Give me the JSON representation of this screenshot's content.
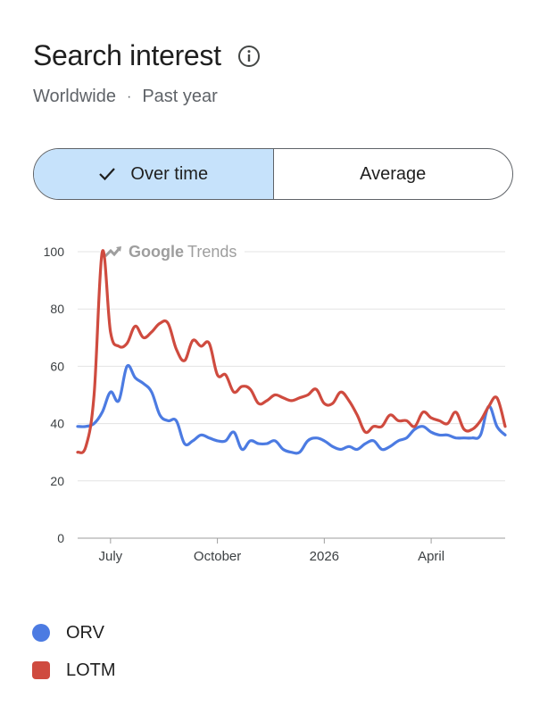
{
  "header": {
    "title": "Search interest",
    "region": "Worldwide",
    "separator": "·",
    "period": "Past year"
  },
  "toggle": {
    "over_time_label": "Over time",
    "average_label": "Average"
  },
  "watermark": {
    "brand": "Google",
    "product": "Trends"
  },
  "colors": {
    "orv": "#4c7be2",
    "lotm": "#cf4b3f",
    "toggle_active": "#c6e2fb"
  },
  "chart_data": {
    "type": "line",
    "title": "",
    "xlabel": "",
    "ylabel": "",
    "ylim": [
      0,
      100
    ],
    "y_ticks": [
      0,
      20,
      40,
      60,
      80,
      100
    ],
    "x_tick_labels": [
      {
        "label": "July",
        "x": 4
      },
      {
        "label": "October",
        "x": 17
      },
      {
        "label": "2026",
        "x": 30
      },
      {
        "label": "April",
        "x": 43
      }
    ],
    "grid": "horizontal",
    "legend": "bottom",
    "x": [
      0,
      1,
      2,
      3,
      4,
      5,
      6,
      7,
      8,
      9,
      10,
      11,
      12,
      13,
      14,
      15,
      16,
      17,
      18,
      19,
      20,
      21,
      22,
      23,
      24,
      25,
      26,
      27,
      28,
      29,
      30,
      31,
      32,
      33,
      34,
      35,
      36,
      37,
      38,
      39,
      40,
      41,
      42,
      43,
      44,
      45,
      46,
      47,
      48,
      49,
      50,
      51,
      52
    ],
    "series": [
      {
        "name": "ORV",
        "color": "#4c7be2",
        "values": [
          39,
          39,
          40,
          44,
          51,
          48,
          60,
          56,
          54,
          51,
          43,
          41,
          41,
          33,
          34,
          36,
          35,
          34,
          34,
          37,
          31,
          34,
          33,
          33,
          34,
          31,
          30,
          30,
          34,
          35,
          34,
          32,
          31,
          32,
          31,
          33,
          34,
          31,
          32,
          34,
          35,
          38,
          39,
          37,
          36,
          36,
          35,
          35,
          35,
          36,
          46,
          39,
          36
        ]
      },
      {
        "name": "LOTM",
        "color": "#cf4b3f",
        "values": [
          30,
          32,
          50,
          100,
          72,
          67,
          68,
          74,
          70,
          72,
          75,
          75,
          66,
          62,
          69,
          67,
          68,
          57,
          57,
          51,
          53,
          52,
          47,
          48,
          50,
          49,
          48,
          49,
          50,
          52,
          47,
          47,
          51,
          48,
          43,
          37,
          39,
          39,
          43,
          41,
          41,
          39,
          44,
          42,
          41,
          40,
          44,
          38,
          38,
          41,
          46,
          49,
          39
        ]
      }
    ]
  }
}
